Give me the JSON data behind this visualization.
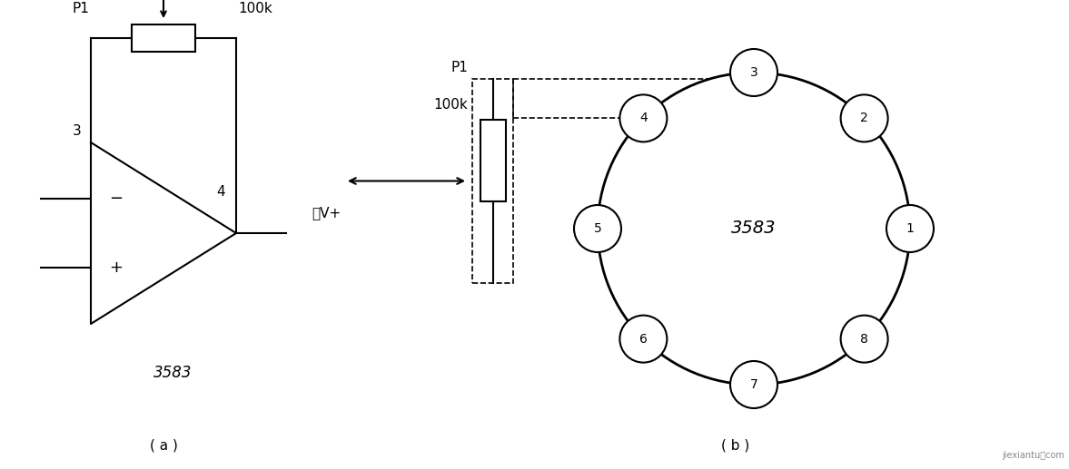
{
  "bg_color": "#ffffff",
  "lc": "#000000",
  "tc": "#000000",
  "fs": 11,
  "a_label": "( a )",
  "b_label": "( b )",
  "vplus": "V+",
  "p1": "P1",
  "100k": "100k",
  "minus": "−",
  "plus": "+",
  "label3": "3",
  "label4": "4",
  "opamp_3583": "3583",
  "zhi_v": "至V+",
  "circle_3583": "3583",
  "pin_labels": [
    "1",
    "2",
    "3",
    "4",
    "5",
    "6",
    "7",
    "8"
  ],
  "watermark": "jiexiantu．com"
}
